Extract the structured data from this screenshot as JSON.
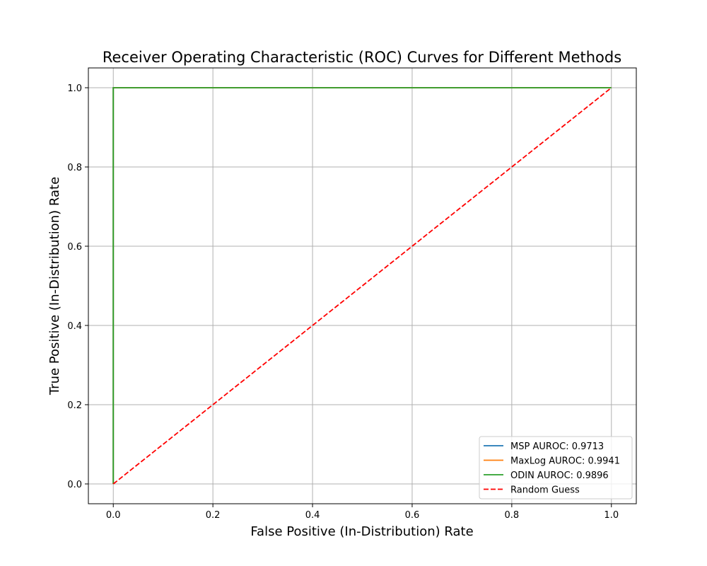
{
  "chart_data": {
    "type": "line",
    "title": "Receiver Operating Characteristic (ROC) Curves for Different Methods",
    "xlabel": "False Positive (In-Distribution) Rate",
    "ylabel": "True Positive (In-Distribution) Rate",
    "xlim": [
      -0.05,
      1.05
    ],
    "ylim": [
      -0.05,
      1.05
    ],
    "xticks": [
      0.0,
      0.2,
      0.4,
      0.6,
      0.8,
      1.0
    ],
    "yticks": [
      0.0,
      0.2,
      0.4,
      0.6,
      0.8,
      1.0
    ],
    "xtick_labels": [
      "0.0",
      "0.2",
      "0.4",
      "0.6",
      "0.8",
      "1.0"
    ],
    "ytick_labels": [
      "0.0",
      "0.2",
      "0.4",
      "0.6",
      "0.8",
      "1.0"
    ],
    "grid": true,
    "legend_position": "lower-right",
    "series": [
      {
        "name": "MSP AUROC: 0.9713",
        "color": "#1f77b4",
        "dash": "solid",
        "x": [
          0.0,
          0.0,
          1.0
        ],
        "y": [
          0.0,
          1.0,
          1.0
        ]
      },
      {
        "name": "MaxLog AUROC: 0.9941",
        "color": "#ff7f0e",
        "dash": "solid",
        "x": [
          0.0,
          0.0,
          1.0
        ],
        "y": [
          0.0,
          1.0,
          1.0
        ]
      },
      {
        "name": "ODIN AUROC: 0.9896",
        "color": "#2ca02c",
        "dash": "solid",
        "x": [
          0.0,
          0.0,
          1.0
        ],
        "y": [
          0.0,
          1.0,
          1.0
        ]
      },
      {
        "name": "Random Guess",
        "color": "#ff0000",
        "dash": "dashed",
        "x": [
          0.0,
          1.0
        ],
        "y": [
          0.0,
          1.0
        ]
      }
    ]
  }
}
